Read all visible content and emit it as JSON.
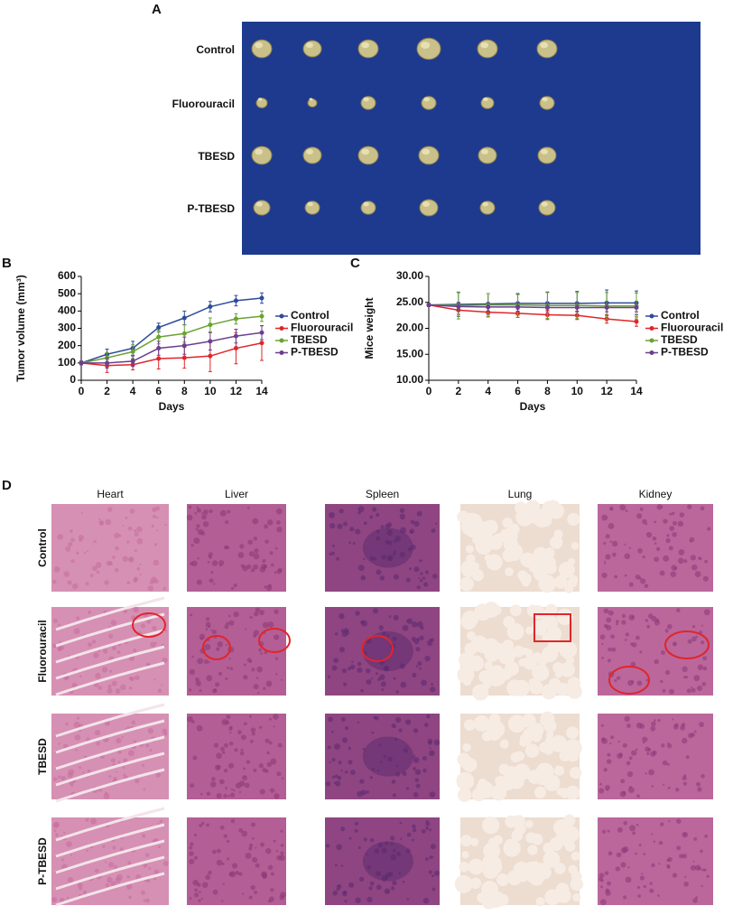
{
  "panel_labels": [
    "A",
    "B",
    "C",
    "D"
  ],
  "tumor_photo": {
    "rows": [
      "Control",
      "Fluorouracil",
      "TBESD",
      "P-TBESD"
    ]
  },
  "chart_data": [
    {
      "type": "line",
      "xlabel": "Days",
      "ylabel": "Tumor volume (mm³)",
      "x": [
        0,
        2,
        4,
        6,
        8,
        10,
        12,
        14
      ],
      "xlim": [
        0,
        14
      ],
      "xticks": [
        0,
        2,
        4,
        6,
        8,
        10,
        12,
        14
      ],
      "ylim": [
        0,
        600
      ],
      "yticks": [
        0,
        100,
        200,
        300,
        400,
        500,
        600
      ],
      "legend": "right",
      "series": [
        {
          "name": "Control",
          "color": "#2e4b9b",
          "values": [
            100,
            150,
            185,
            305,
            360,
            425,
            460,
            475
          ],
          "errors": [
            10,
            30,
            40,
            25,
            40,
            30,
            30,
            30
          ]
        },
        {
          "name": "Fluorouracil",
          "color": "#e0262a",
          "values": [
            100,
            85,
            90,
            125,
            130,
            140,
            185,
            215
          ],
          "errors": [
            10,
            40,
            30,
            60,
            60,
            90,
            90,
            100
          ]
        },
        {
          "name": "TBESD",
          "color": "#6aa232",
          "values": [
            100,
            130,
            165,
            250,
            270,
            320,
            355,
            370
          ],
          "errors": [
            10,
            30,
            40,
            40,
            50,
            40,
            30,
            30
          ]
        },
        {
          "name": "P-TBESD",
          "color": "#6b3f8f",
          "values": [
            100,
            100,
            110,
            185,
            200,
            225,
            255,
            275
          ],
          "errors": [
            10,
            30,
            30,
            40,
            50,
            50,
            40,
            40
          ]
        }
      ]
    },
    {
      "type": "line",
      "xlabel": "Days",
      "ylabel": "Mice weight",
      "x": [
        0,
        2,
        4,
        6,
        8,
        10,
        12,
        14
      ],
      "xlim": [
        0,
        14
      ],
      "xticks": [
        0,
        2,
        4,
        6,
        8,
        10,
        12,
        14
      ],
      "ylim": [
        10,
        30
      ],
      "yticks": [
        {
          "value": 10,
          "label": "10.00"
        },
        {
          "value": 15,
          "label": "15.00"
        },
        {
          "value": 20,
          "label": "20.00"
        },
        {
          "value": 25,
          "label": "25.00"
        },
        {
          "value": 30,
          "label": "30.00"
        }
      ],
      "legend": "right",
      "series": [
        {
          "name": "Control",
          "color": "#2e4b9b",
          "values": [
            24.5,
            24.6,
            24.7,
            24.8,
            24.8,
            24.8,
            24.9,
            24.9
          ],
          "errors": [
            0.3,
            2.3,
            2.0,
            1.9,
            2.2,
            2.3,
            2.5,
            2.3
          ]
        },
        {
          "name": "Fluorouracil",
          "color": "#e0262a",
          "values": [
            24.5,
            23.5,
            23.1,
            22.9,
            22.6,
            22.5,
            21.8,
            21.3
          ],
          "errors": [
            0.3,
            0.8,
            0.9,
            0.8,
            0.9,
            0.8,
            0.8,
            0.9
          ]
        },
        {
          "name": "TBESD",
          "color": "#6aa232",
          "values": [
            24.5,
            24.4,
            24.5,
            24.5,
            24.4,
            24.4,
            24.3,
            24.3
          ],
          "errors": [
            0.3,
            2.6,
            2.2,
            2.0,
            2.5,
            2.5,
            2.6,
            2.5
          ]
        },
        {
          "name": "P-TBESD",
          "color": "#6b3f8f",
          "values": [
            24.5,
            24.2,
            24.1,
            24.1,
            24.0,
            24.0,
            24.0,
            24.0
          ],
          "errors": [
            0.3,
            0.8,
            0.8,
            0.8,
            0.8,
            0.8,
            0.8,
            0.8
          ]
        }
      ]
    }
  ],
  "histology": {
    "columns": [
      "Heart",
      "Liver",
      "Spleen",
      "Lung",
      "Kidney"
    ],
    "rows": [
      "Control",
      "Fluorouracil",
      "TBESD",
      "P-TBESD"
    ]
  }
}
